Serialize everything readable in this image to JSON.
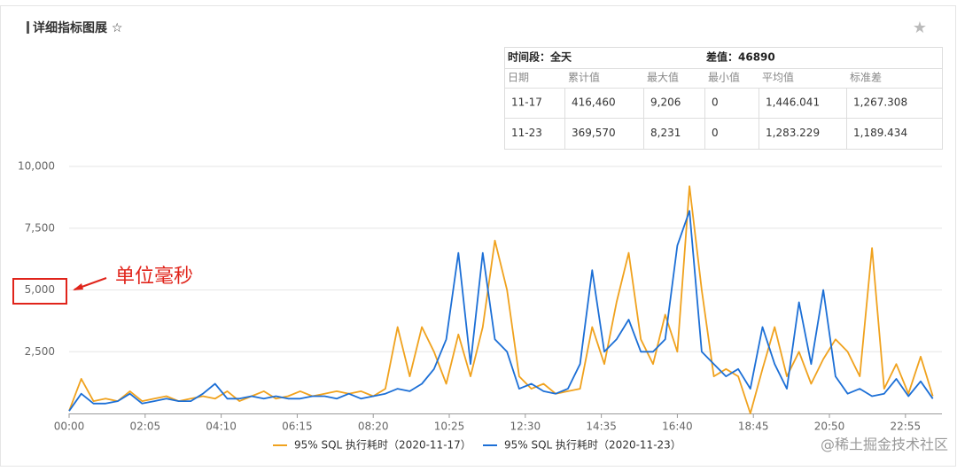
{
  "panel": {
    "title": "详细指标图展 ☆",
    "star": "★"
  },
  "summary_table": {
    "period": "时间段：全天",
    "diff": "差值：46890",
    "columns": [
      "日期",
      "累计值",
      "最大值",
      "最小值",
      "平均值",
      "标准差"
    ],
    "rows": [
      [
        "11-17",
        "416,460",
        "9,206",
        "0",
        "1,446.041",
        "1,267.308"
      ],
      [
        "11-23",
        "369,570",
        "8,231",
        "0",
        "1,283.229",
        "1,189.434"
      ]
    ]
  },
  "chart_data": {
    "type": "line",
    "annotation": "单位毫秒",
    "watermark": "@稀土掘金技术社区",
    "x": [
      0,
      20,
      40,
      60,
      80,
      100,
      120,
      140,
      160,
      180,
      200,
      220,
      240,
      260,
      280,
      300,
      320,
      340,
      360,
      380,
      400,
      420,
      440,
      460,
      480,
      500,
      520,
      540,
      560,
      580,
      600,
      620,
      640,
      660,
      680,
      700,
      720,
      740,
      760,
      780,
      800,
      820,
      840,
      860,
      880,
      900,
      920,
      940,
      960,
      980,
      1000,
      1020,
      1040,
      1060,
      1080,
      1100,
      1120,
      1140,
      1160,
      1180,
      1200,
      1220,
      1240,
      1260,
      1280,
      1300,
      1320,
      1340,
      1360,
      1380,
      1400,
      1420
    ],
    "xlim": [
      0,
      1435
    ],
    "xticks": [
      {
        "value": 0,
        "label": "00:00"
      },
      {
        "value": 125,
        "label": "02:05"
      },
      {
        "value": 250,
        "label": "04:10"
      },
      {
        "value": 375,
        "label": "06:15"
      },
      {
        "value": 500,
        "label": "08:20"
      },
      {
        "value": 625,
        "label": "10:25"
      },
      {
        "value": 750,
        "label": "12:30"
      },
      {
        "value": 875,
        "label": "14:35"
      },
      {
        "value": 1000,
        "label": "16:40"
      },
      {
        "value": 1125,
        "label": "18:45"
      },
      {
        "value": 1250,
        "label": "20:50"
      },
      {
        "value": 1375,
        "label": "22:55"
      }
    ],
    "ylim": [
      0,
      10000
    ],
    "yticks": [
      {
        "value": 2500,
        "label": "2,500"
      },
      {
        "value": 5000,
        "label": "5,000"
      },
      {
        "value": 7500,
        "label": "7,500"
      },
      {
        "value": 10000,
        "label": "10,000"
      }
    ],
    "grid": true,
    "series": [
      {
        "name": "95% SQL 执行耗时（2020-11-17）",
        "color": "#f0a21e",
        "values": [
          100,
          1400,
          500,
          600,
          500,
          900,
          500,
          600,
          700,
          500,
          600,
          700,
          600,
          900,
          500,
          700,
          900,
          600,
          700,
          900,
          700,
          800,
          900,
          800,
          900,
          700,
          1000,
          3500,
          1500,
          3500,
          2500,
          1200,
          3200,
          1500,
          3500,
          7000,
          5000,
          1500,
          1000,
          1200,
          800,
          900,
          1000,
          3500,
          2000,
          4500,
          6500,
          3000,
          2000,
          4000,
          2500,
          9200,
          5000,
          1500,
          1800,
          1500,
          0,
          1800,
          3500,
          1500,
          2500,
          1200,
          2200,
          3000,
          2500,
          1500,
          6700,
          1000,
          2000,
          800,
          2300,
          700
        ]
      },
      {
        "name": "95% SQL 执行耗时（2020-11-23）",
        "color": "#1c6fd6",
        "values": [
          100,
          800,
          400,
          400,
          500,
          800,
          400,
          500,
          600,
          500,
          500,
          800,
          1200,
          600,
          600,
          700,
          600,
          700,
          600,
          600,
          700,
          700,
          600,
          800,
          600,
          700,
          800,
          1000,
          900,
          1200,
          1800,
          3000,
          6500,
          2000,
          6500,
          3000,
          2500,
          1000,
          1200,
          900,
          800,
          1000,
          2000,
          5800,
          2500,
          3000,
          3800,
          2500,
          2500,
          3000,
          6800,
          8200,
          2500,
          2000,
          1500,
          1800,
          1000,
          3500,
          2000,
          1000,
          4500,
          2000,
          5000,
          1500,
          800,
          1000,
          700,
          800,
          1400,
          700,
          1300,
          600
        ]
      }
    ]
  }
}
